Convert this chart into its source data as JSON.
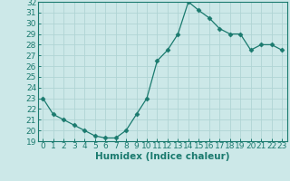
{
  "xlabel": "Humidex (Indice chaleur)",
  "x": [
    0,
    1,
    2,
    3,
    4,
    5,
    6,
    7,
    8,
    9,
    10,
    11,
    12,
    13,
    14,
    15,
    16,
    17,
    18,
    19,
    20,
    21,
    22,
    23
  ],
  "y": [
    23.0,
    21.5,
    21.0,
    20.5,
    20.0,
    19.5,
    19.3,
    19.3,
    20.0,
    21.5,
    23.0,
    26.5,
    27.5,
    29.0,
    32.0,
    31.2,
    30.5,
    29.5,
    29.0,
    29.0,
    27.5,
    28.0,
    28.0,
    27.5
  ],
  "line_color": "#1a7a6e",
  "marker": "D",
  "marker_size": 2.5,
  "bg_color": "#cce8e8",
  "grid_color": "#b0d4d4",
  "ylim": [
    19,
    32
  ],
  "xlim": [
    -0.5,
    23.5
  ],
  "yticks": [
    19,
    20,
    21,
    22,
    23,
    24,
    25,
    26,
    27,
    28,
    29,
    30,
    31,
    32
  ],
  "xticks": [
    0,
    1,
    2,
    3,
    4,
    5,
    6,
    7,
    8,
    9,
    10,
    11,
    12,
    13,
    14,
    15,
    16,
    17,
    18,
    19,
    20,
    21,
    22,
    23
  ],
  "tick_color": "#1a7a6e",
  "label_fontsize": 7.5,
  "tick_fontsize": 6.5
}
